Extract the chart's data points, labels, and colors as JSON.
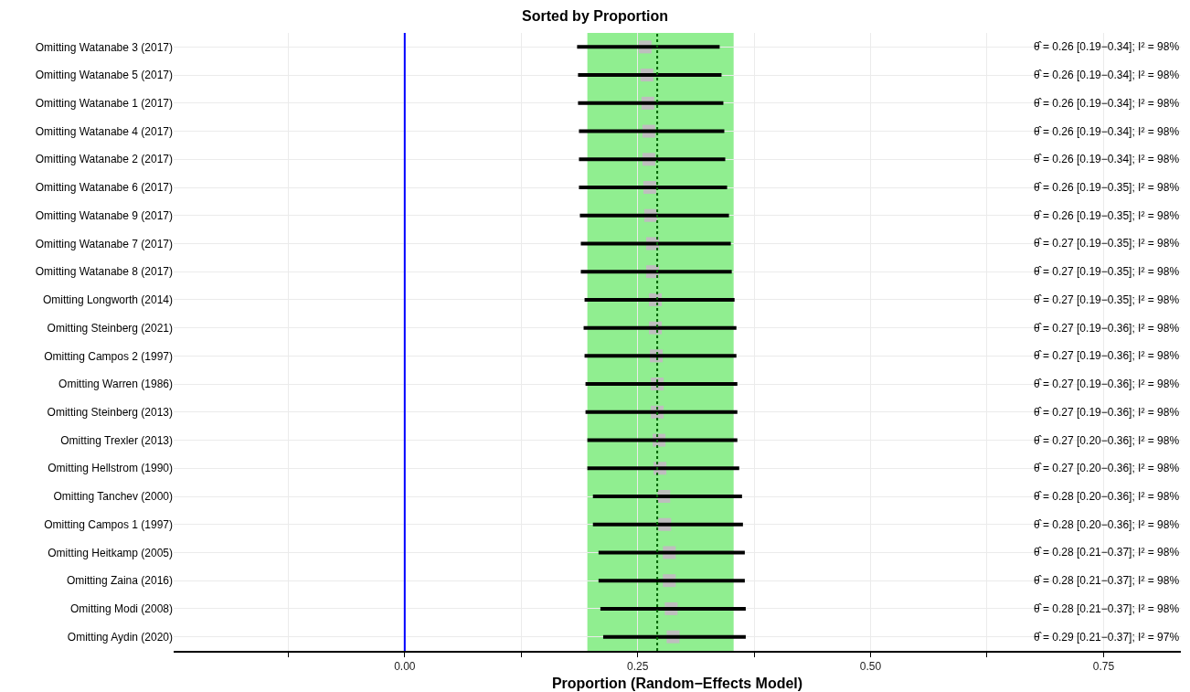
{
  "chart_data": {
    "type": "scatter",
    "orientation": "horizontal",
    "title": "Sorted by Proportion",
    "xlabel": "Proportion (Random−Effects Model)",
    "categories": [
      "Omitting Watanabe 3 (2017)",
      "Omitting Watanabe 5 (2017)",
      "Omitting Watanabe 1 (2017)",
      "Omitting Watanabe 4 (2017)",
      "Omitting Watanabe 2 (2017)",
      "Omitting Watanabe 6 (2017)",
      "Omitting Watanabe 9 (2017)",
      "Omitting Watanabe 7 (2017)",
      "Omitting Watanabe 8 (2017)",
      "Omitting Longworth (2014)",
      "Omitting Steinberg (2021)",
      "Omitting Campos 2 (1997)",
      "Omitting Warren (1986)",
      "Omitting Steinberg (2013)",
      "Omitting Trexler (2013)",
      "Omitting Hellstrom (1990)",
      "Omitting Tanchev (2000)",
      "Omitting Campos 1 (1997)",
      "Omitting Heitkamp (2005)",
      "Omitting Zaina (2016)",
      "Omitting Modi (2008)",
      "Omitting Aydin (2020)"
    ],
    "series": [
      {
        "color": "#bebebe",
        "values": [
          0.258,
          0.26,
          0.261,
          0.262,
          0.262,
          0.263,
          0.264,
          0.266,
          0.266,
          0.269,
          0.269,
          0.27,
          0.271,
          0.271,
          0.273,
          0.274,
          0.278,
          0.279,
          0.284,
          0.284,
          0.286,
          0.288
        ],
        "errors": [
          [
            0.185,
            0.338
          ],
          [
            0.186,
            0.34
          ],
          [
            0.186,
            0.342
          ],
          [
            0.187,
            0.343
          ],
          [
            0.187,
            0.344
          ],
          [
            0.187,
            0.346
          ],
          [
            0.188,
            0.348
          ],
          [
            0.189,
            0.35
          ],
          [
            0.189,
            0.351
          ],
          [
            0.193,
            0.354
          ],
          [
            0.192,
            0.356
          ],
          [
            0.193,
            0.356
          ],
          [
            0.194,
            0.357
          ],
          [
            0.194,
            0.357
          ],
          [
            0.196,
            0.357
          ],
          [
            0.196,
            0.359
          ],
          [
            0.202,
            0.362
          ],
          [
            0.202,
            0.363
          ],
          [
            0.208,
            0.365
          ],
          [
            0.208,
            0.365
          ],
          [
            0.21,
            0.366
          ],
          [
            0.213,
            0.366
          ]
        ]
      }
    ],
    "annotations": [
      "θ̂ = 0.26 [0.19−0.34]; I² = 98%",
      "θ̂ = 0.26 [0.19−0.34]; I² = 98%",
      "θ̂ = 0.26 [0.19−0.34]; I² = 98%",
      "θ̂ = 0.26 [0.19−0.34]; I² = 98%",
      "θ̂ = 0.26 [0.19−0.34]; I² = 98%",
      "θ̂ = 0.26 [0.19−0.35]; I² = 98%",
      "θ̂ = 0.26 [0.19−0.35]; I² = 98%",
      "θ̂ = 0.27 [0.19−0.35]; I² = 98%",
      "θ̂ = 0.27 [0.19−0.35]; I² = 98%",
      "θ̂ = 0.27 [0.19−0.35]; I² = 98%",
      "θ̂ = 0.27 [0.19−0.36]; I² = 98%",
      "θ̂ = 0.27 [0.19−0.36]; I² = 98%",
      "θ̂ = 0.27 [0.19−0.36]; I² = 98%",
      "θ̂ = 0.27 [0.19−0.36]; I² = 98%",
      "θ̂ = 0.27 [0.20−0.36]; I² = 98%",
      "θ̂ = 0.27 [0.20−0.36]; I² = 98%",
      "θ̂ = 0.28 [0.20−0.36]; I² = 98%",
      "θ̂ = 0.28 [0.20−0.36]; I² = 98%",
      "θ̂ = 0.28 [0.21−0.37]; I² = 98%",
      "θ̂ = 0.28 [0.21−0.37]; I² = 98%",
      "θ̂ = 0.28 [0.21−0.37]; I² = 98%",
      "θ̂ = 0.29 [0.21−0.37]; I² = 97%"
    ],
    "marker": "square",
    "xlim": [
      -0.248,
      0.833
    ],
    "xticks": [
      {
        "value": -0.125,
        "label": null
      },
      {
        "value": 0,
        "label": "0.00"
      },
      {
        "value": 0.125,
        "label": null
      },
      {
        "value": 0.25,
        "label": "0.25"
      },
      {
        "value": 0.375,
        "label": null
      },
      {
        "value": 0.5,
        "label": "0.50"
      },
      {
        "value": 0.625,
        "label": null
      },
      {
        "value": 0.75,
        "label": "0.75"
      }
    ],
    "grid": true,
    "ref_lines": [
      {
        "axis": "x",
        "value": 0,
        "color": "#0000ff",
        "line_style": "solid"
      },
      {
        "axis": "x",
        "value": 0.271,
        "color": "#006400",
        "line_style": "dotted"
      }
    ],
    "bands": [
      {
        "axis": "x",
        "from": 0.196,
        "to": 0.353,
        "color": "#90ee90"
      }
    ]
  }
}
